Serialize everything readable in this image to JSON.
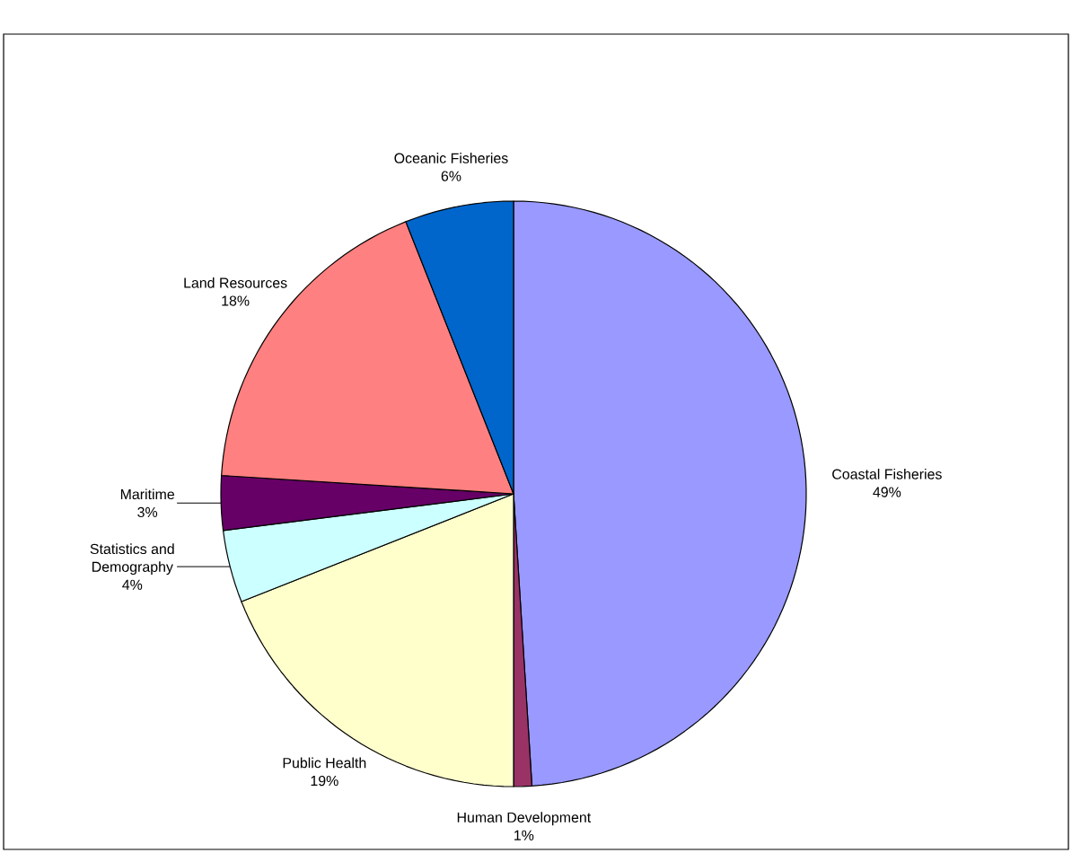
{
  "chart_data": {
    "type": "pie",
    "categories": [
      "Coastal Fisheries",
      "Human Development",
      "Public Health",
      "Statistics and Demography",
      "Maritime",
      "Land Resources",
      "Oceanic Fisheries"
    ],
    "values": [
      49,
      1,
      19,
      4,
      3,
      18,
      6
    ],
    "value_labels": [
      "49%",
      "1%",
      "19%",
      "4%",
      "3%",
      "18%",
      "6%"
    ],
    "colors": [
      "#9999ff",
      "#993366",
      "#ffffcc",
      "#ccffff",
      "#660066",
      "#ff8080",
      "#0066cc"
    ]
  }
}
